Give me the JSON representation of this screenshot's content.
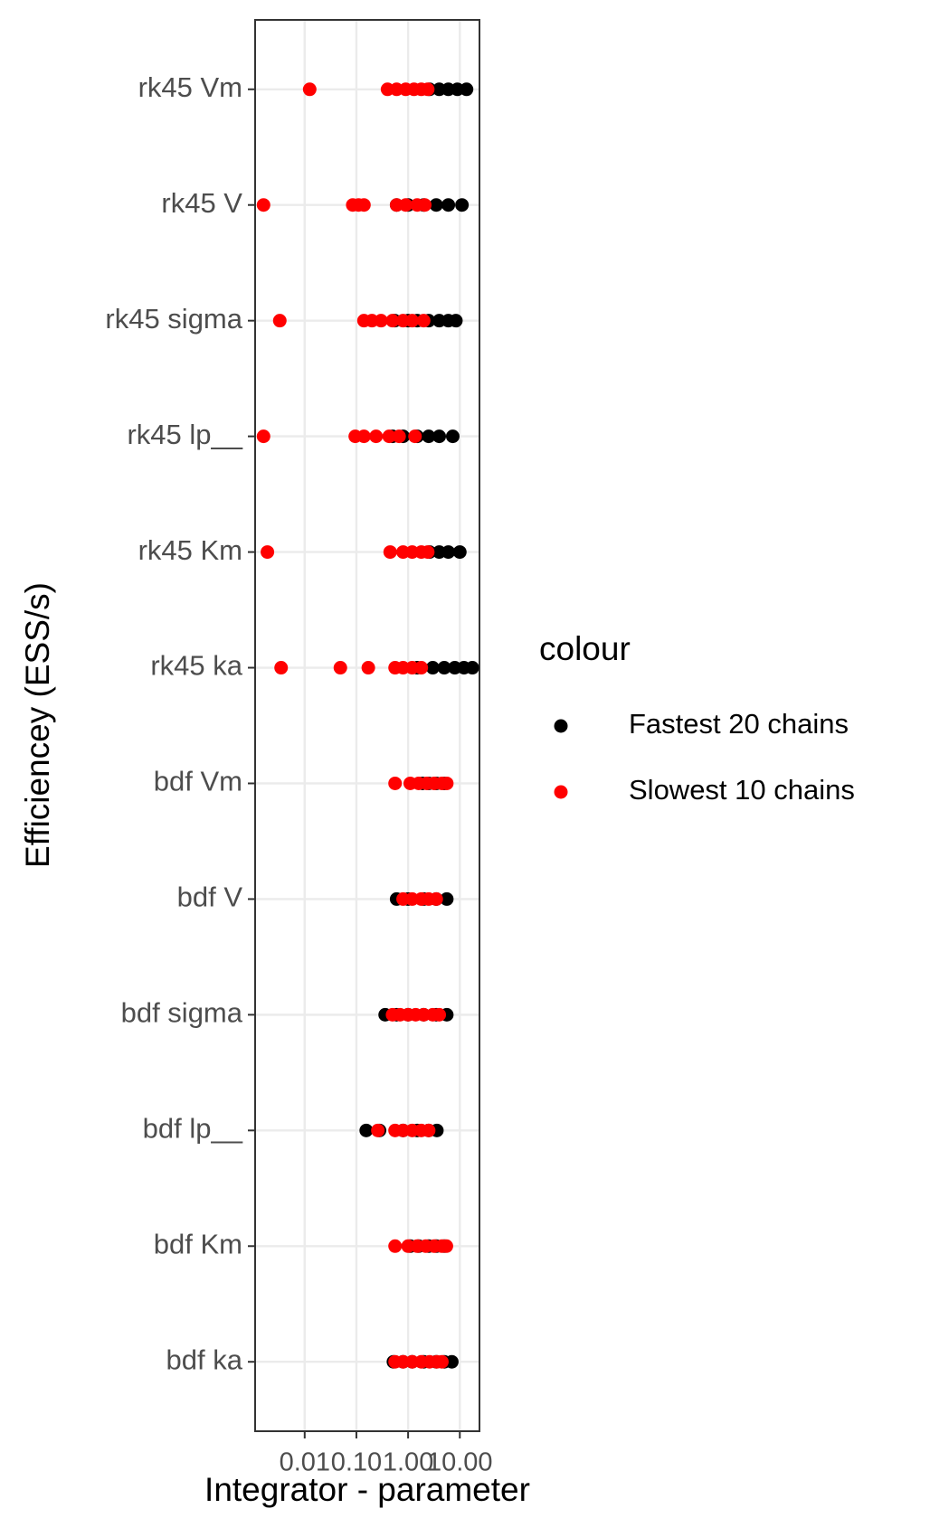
{
  "chart_data": {
    "type": "scatter",
    "x_label": "Integrator - parameter",
    "y_label": "Efficiencey (ESS/s)",
    "legend_title": "colour",
    "legend_position": "right",
    "categories": [
      "rk45 Vm",
      "rk45 V",
      "rk45 sigma",
      "rk45 lp__",
      "rk45 Km",
      "rk45 ka",
      "bdf Vm",
      "bdf V",
      "bdf sigma",
      "bdf lp__",
      "bdf Km",
      "bdf ka"
    ],
    "x_log": true,
    "xlim": [
      0.0011,
      24
    ],
    "xticks": [
      0.01,
      {
        "value": 0.1,
        "label": "0.10"
      },
      {
        "value": 1,
        "label": "1.00"
      },
      {
        "value": 10,
        "label": "10.00"
      }
    ],
    "grid": true,
    "series": [
      {
        "name": "Fastest 20 chains",
        "color": "#000000",
        "y": [
          "rk45 Vm",
          "rk45 Vm",
          "rk45 Vm",
          "rk45 Vm",
          "rk45 Vm",
          "rk45 V",
          "rk45 V",
          "rk45 V",
          "rk45 V",
          "rk45 V",
          "rk45 V",
          "rk45 sigma",
          "rk45 sigma",
          "rk45 sigma",
          "rk45 sigma",
          "rk45 sigma",
          "rk45 sigma",
          "rk45 sigma",
          "rk45 lp__",
          "rk45 lp__",
          "rk45 lp__",
          "rk45 lp__",
          "rk45 lp__",
          "rk45 lp__",
          "rk45 Km",
          "rk45 Km",
          "rk45 Km",
          "rk45 Km",
          "rk45 ka",
          "rk45 ka",
          "rk45 ka",
          "rk45 ka",
          "rk45 ka",
          "rk45 ka",
          "bdf Vm",
          "bdf Vm",
          "bdf Vm",
          "bdf Vm",
          "bdf V",
          "bdf V",
          "bdf V",
          "bdf V",
          "bdf V",
          "bdf sigma",
          "bdf sigma",
          "bdf sigma",
          "bdf sigma",
          "bdf sigma",
          "bdf sigma",
          "bdf lp__",
          "bdf lp__",
          "bdf lp__",
          "bdf lp__",
          "bdf lp__",
          "bdf lp__",
          "bdf Km",
          "bdf Km",
          "bdf Km",
          "bdf Km",
          "bdf Km",
          "bdf ka",
          "bdf ka",
          "bdf ka",
          "bdf ka",
          "bdf ka",
          "bdf ka",
          "bdf ka"
        ],
        "x": [
          2.6,
          4,
          6,
          9,
          13.5,
          0.6,
          1,
          2,
          3.5,
          6,
          11,
          0.55,
          1,
          1.5,
          2.5,
          4,
          6,
          8.4,
          0.5,
          0.8,
          1.5,
          2.5,
          4,
          7.3,
          2.6,
          4,
          6,
          10,
          1.5,
          3,
          5,
          8,
          12,
          17.5,
          1.9,
          2.5,
          3.5,
          5,
          0.6,
          1,
          2,
          3.5,
          5.6,
          0.36,
          0.6,
          1,
          2,
          3.5,
          5.6,
          0.155,
          0.28,
          0.8,
          1.5,
          2.5,
          3.6,
          1.1,
          1.6,
          2.5,
          3.5,
          5,
          0.52,
          0.8,
          1.2,
          2,
          3.5,
          5,
          7
        ]
      },
      {
        "name": "Slowest 10 chains",
        "color": "#ff0000",
        "y": [
          "rk45 Vm",
          "rk45 Vm",
          "rk45 Vm",
          "rk45 Vm",
          "rk45 Vm",
          "rk45 Vm",
          "rk45 Vm",
          "rk45 V",
          "rk45 V",
          "rk45 V",
          "rk45 V",
          "rk45 V",
          "rk45 V",
          "rk45 V",
          "rk45 V",
          "rk45 sigma",
          "rk45 sigma",
          "rk45 sigma",
          "rk45 sigma",
          "rk45 sigma",
          "rk45 sigma",
          "rk45 sigma",
          "rk45 sigma",
          "rk45 lp__",
          "rk45 lp__",
          "rk45 lp__",
          "rk45 lp__",
          "rk45 lp__",
          "rk45 lp__",
          "rk45 lp__",
          "rk45 Km",
          "rk45 Km",
          "rk45 Km",
          "rk45 Km",
          "rk45 Km",
          "rk45 Km",
          "rk45 ka",
          "rk45 ka",
          "rk45 ka",
          "rk45 ka",
          "rk45 ka",
          "rk45 ka",
          "rk45 ka",
          "bdf Vm",
          "bdf Vm",
          "bdf Vm",
          "bdf Vm",
          "bdf Vm",
          "bdf Vm",
          "bdf Vm",
          "bdf V",
          "bdf V",
          "bdf V",
          "bdf V",
          "bdf V",
          "bdf sigma",
          "bdf sigma",
          "bdf sigma",
          "bdf sigma",
          "bdf sigma",
          "bdf sigma",
          "bdf sigma",
          "bdf lp__",
          "bdf lp__",
          "bdf lp__",
          "bdf lp__",
          "bdf lp__",
          "bdf lp__",
          "bdf Km",
          "bdf Km",
          "bdf Km",
          "bdf Km",
          "bdf Km",
          "bdf Km",
          "bdf Km",
          "bdf ka",
          "bdf ka",
          "bdf ka",
          "bdf ka",
          "bdf ka",
          "bdf ka",
          "bdf ka"
        ],
        "x": [
          0.0125,
          0.4,
          0.6,
          0.9,
          1.3,
          1.8,
          2.4,
          0.0016,
          0.085,
          0.11,
          0.14,
          0.6,
          0.9,
          1.5,
          2.1,
          0.0033,
          0.14,
          0.2,
          0.3,
          0.5,
          0.8,
          1.2,
          2,
          0.0016,
          0.095,
          0.14,
          0.24,
          0.43,
          0.67,
          1.36,
          0.0019,
          0.45,
          0.8,
          1.2,
          1.8,
          2.4,
          0.0035,
          0.049,
          0.17,
          0.56,
          0.8,
          1.2,
          1.8,
          0.56,
          1.1,
          1.6,
          2.3,
          3.2,
          4.5,
          5.6,
          0.8,
          1.2,
          1.8,
          2.5,
          3.5,
          0.5,
          0.7,
          1,
          1.4,
          2,
          3,
          4,
          0.26,
          0.56,
          0.8,
          1.2,
          1.8,
          2.5,
          0.56,
          1,
          1.5,
          2.2,
          3.2,
          4.5,
          5.5,
          0.56,
          0.8,
          1.2,
          1.8,
          2.6,
          3.6,
          4.5
        ]
      }
    ]
  }
}
